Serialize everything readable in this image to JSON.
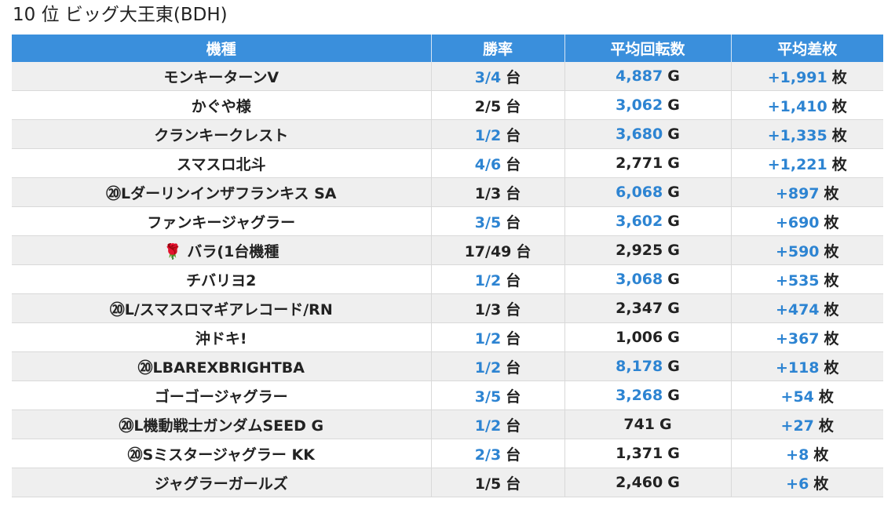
{
  "page": {
    "title": "10 位 ビッグ大王東(BDH)"
  },
  "colors": {
    "header_bg": "#3a8fdc",
    "link": "#2d84d2",
    "row_alt": "#efefef"
  },
  "table": {
    "headers": [
      "機種",
      "勝率",
      "平均回転数",
      "平均差枚"
    ],
    "units": {
      "rate": "台",
      "spins": "G",
      "diff": "枚"
    },
    "rows": [
      {
        "name": "モンキーターンV",
        "rate": "3/4",
        "rate_link": true,
        "spins": "4,887",
        "spins_link": true,
        "diff": "+1,991",
        "diff_link": true
      },
      {
        "name": "かぐや様",
        "rate": "2/5",
        "rate_link": false,
        "spins": "3,062",
        "spins_link": true,
        "diff": "+1,410",
        "diff_link": true
      },
      {
        "name": "クランキークレスト",
        "rate": "1/2",
        "rate_link": true,
        "spins": "3,680",
        "spins_link": true,
        "diff": "+1,335",
        "diff_link": true
      },
      {
        "name": "スマスロ北斗",
        "rate": "4/6",
        "rate_link": true,
        "spins": "2,771",
        "spins_link": false,
        "diff": "+1,221",
        "diff_link": true
      },
      {
        "name": "⑳Lダーリンインザフランキス SA",
        "rate": "1/3",
        "rate_link": false,
        "spins": "6,068",
        "spins_link": true,
        "diff": "+897",
        "diff_link": true
      },
      {
        "name": "ファンキージャグラー",
        "rate": "3/5",
        "rate_link": true,
        "spins": "3,602",
        "spins_link": true,
        "diff": "+690",
        "diff_link": true
      },
      {
        "name": "🌹 バラ(1台機種",
        "rate": "17/49",
        "rate_link": false,
        "spins": "2,925",
        "spins_link": false,
        "diff": "+590",
        "diff_link": true
      },
      {
        "name": "チバリヨ2",
        "rate": "1/2",
        "rate_link": true,
        "spins": "3,068",
        "spins_link": true,
        "diff": "+535",
        "diff_link": true
      },
      {
        "name": "⑳L/スマスロマギアレコード/RN",
        "rate": "1/3",
        "rate_link": false,
        "spins": "2,347",
        "spins_link": false,
        "diff": "+474",
        "diff_link": true
      },
      {
        "name": "沖ドキ!",
        "rate": "1/2",
        "rate_link": true,
        "spins": "1,006",
        "spins_link": false,
        "diff": "+367",
        "diff_link": true
      },
      {
        "name": "⑳LBAREXBRIGHTBA",
        "rate": "1/2",
        "rate_link": true,
        "spins": "8,178",
        "spins_link": true,
        "diff": "+118",
        "diff_link": true
      },
      {
        "name": "ゴーゴージャグラー",
        "rate": "3/5",
        "rate_link": true,
        "spins": "3,268",
        "spins_link": true,
        "diff": "+54",
        "diff_link": true
      },
      {
        "name": "⑳L機動戦士ガンダムSEED G",
        "rate": "1/2",
        "rate_link": true,
        "spins": "741",
        "spins_link": false,
        "diff": "+27",
        "diff_link": true
      },
      {
        "name": "⑳Sミスタージャグラー KK",
        "rate": "2/3",
        "rate_link": true,
        "spins": "1,371",
        "spins_link": false,
        "diff": "+8",
        "diff_link": true
      },
      {
        "name": "ジャグラーガールズ",
        "rate": "1/5",
        "rate_link": false,
        "spins": "2,460",
        "spins_link": false,
        "diff": "+6",
        "diff_link": true
      }
    ]
  }
}
